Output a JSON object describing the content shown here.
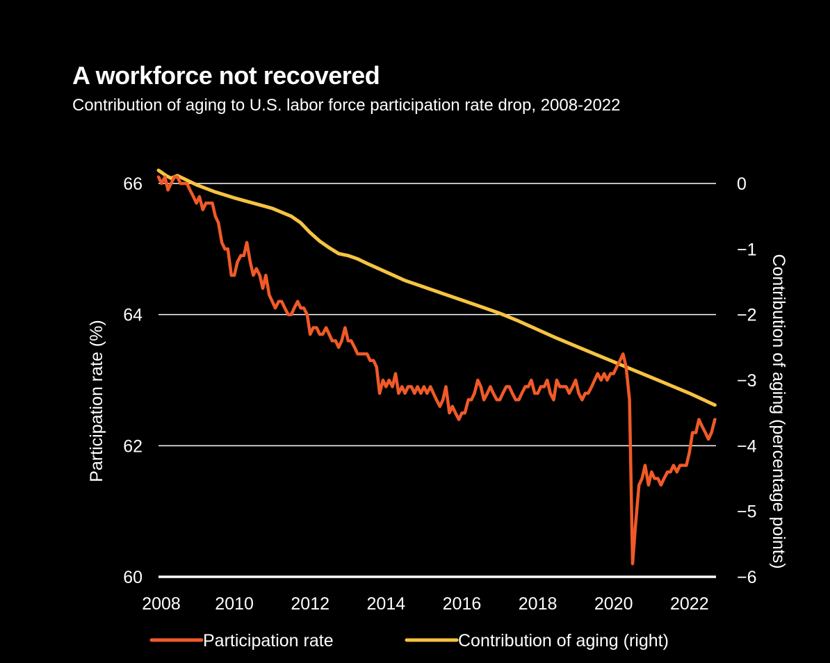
{
  "chart_data": {
    "type": "line",
    "title": "A workforce not recovered",
    "subtitle": "Contribution of aging to U.S. labor force participation rate drop, 2008-2022",
    "xlabel": "",
    "ylabel": "Participation rate (%)",
    "y2label": "Contribution of aging (percentage points)",
    "xlim": [
      2008,
      2022.7
    ],
    "ylim": [
      60,
      66
    ],
    "y2lim": [
      -6,
      0
    ],
    "x_ticks": [
      "2008",
      "2010",
      "2012",
      "2014",
      "2016",
      "2018",
      "2020",
      "2022"
    ],
    "y_ticks": [
      "60",
      "62",
      "64",
      "66"
    ],
    "y2_ticks": [
      "-6",
      "-5",
      "-4",
      "-3",
      "-2",
      "-1",
      "0"
    ],
    "gridlines": [
      62,
      64,
      66
    ],
    "legend_position": "bottom",
    "series": [
      {
        "name": "Participation rate",
        "axis": "left",
        "color": "#f05a28",
        "points": [
          [
            2008.0,
            66.1
          ],
          [
            2008.08,
            66.0
          ],
          [
            2008.17,
            66.1
          ],
          [
            2008.25,
            65.9
          ],
          [
            2008.33,
            66.0
          ],
          [
            2008.42,
            66.1
          ],
          [
            2008.5,
            66.1
          ],
          [
            2008.58,
            66.0
          ],
          [
            2008.67,
            66.0
          ],
          [
            2008.75,
            66.0
          ],
          [
            2008.83,
            65.9
          ],
          [
            2008.92,
            65.8
          ],
          [
            2009.0,
            65.7
          ],
          [
            2009.08,
            65.8
          ],
          [
            2009.17,
            65.6
          ],
          [
            2009.25,
            65.7
          ],
          [
            2009.33,
            65.7
          ],
          [
            2009.42,
            65.7
          ],
          [
            2009.5,
            65.5
          ],
          [
            2009.58,
            65.4
          ],
          [
            2009.67,
            65.1
          ],
          [
            2009.75,
            65.0
          ],
          [
            2009.83,
            65.0
          ],
          [
            2009.92,
            64.6
          ],
          [
            2010.0,
            64.6
          ],
          [
            2010.08,
            64.8
          ],
          [
            2010.17,
            64.9
          ],
          [
            2010.25,
            64.9
          ],
          [
            2010.33,
            65.1
          ],
          [
            2010.42,
            64.8
          ],
          [
            2010.5,
            64.6
          ],
          [
            2010.58,
            64.7
          ],
          [
            2010.67,
            64.6
          ],
          [
            2010.75,
            64.4
          ],
          [
            2010.83,
            64.6
          ],
          [
            2010.92,
            64.3
          ],
          [
            2011.0,
            64.2
          ],
          [
            2011.08,
            64.1
          ],
          [
            2011.17,
            64.2
          ],
          [
            2011.25,
            64.2
          ],
          [
            2011.33,
            64.1
          ],
          [
            2011.42,
            64.0
          ],
          [
            2011.5,
            64.0
          ],
          [
            2011.58,
            64.1
          ],
          [
            2011.67,
            64.2
          ],
          [
            2011.75,
            64.1
          ],
          [
            2011.83,
            64.1
          ],
          [
            2011.92,
            64.0
          ],
          [
            2012.0,
            63.7
          ],
          [
            2012.08,
            63.8
          ],
          [
            2012.17,
            63.8
          ],
          [
            2012.25,
            63.7
          ],
          [
            2012.33,
            63.7
          ],
          [
            2012.42,
            63.8
          ],
          [
            2012.5,
            63.7
          ],
          [
            2012.58,
            63.6
          ],
          [
            2012.67,
            63.6
          ],
          [
            2012.75,
            63.5
          ],
          [
            2012.83,
            63.6
          ],
          [
            2012.92,
            63.8
          ],
          [
            2013.0,
            63.6
          ],
          [
            2013.08,
            63.6
          ],
          [
            2013.17,
            63.5
          ],
          [
            2013.25,
            63.4
          ],
          [
            2013.33,
            63.4
          ],
          [
            2013.42,
            63.4
          ],
          [
            2013.5,
            63.4
          ],
          [
            2013.58,
            63.3
          ],
          [
            2013.67,
            63.3
          ],
          [
            2013.75,
            63.2
          ],
          [
            2013.83,
            62.8
          ],
          [
            2013.92,
            63.0
          ],
          [
            2014.0,
            62.9
          ],
          [
            2014.08,
            63.0
          ],
          [
            2014.17,
            62.9
          ],
          [
            2014.25,
            63.1
          ],
          [
            2014.33,
            62.8
          ],
          [
            2014.42,
            62.9
          ],
          [
            2014.5,
            62.8
          ],
          [
            2014.58,
            62.9
          ],
          [
            2014.67,
            62.9
          ],
          [
            2014.75,
            62.8
          ],
          [
            2014.83,
            62.9
          ],
          [
            2014.92,
            62.8
          ],
          [
            2015.0,
            62.9
          ],
          [
            2015.08,
            62.8
          ],
          [
            2015.17,
            62.9
          ],
          [
            2015.25,
            62.8
          ],
          [
            2015.33,
            62.7
          ],
          [
            2015.42,
            62.6
          ],
          [
            2015.5,
            62.7
          ],
          [
            2015.58,
            62.9
          ],
          [
            2015.67,
            62.5
          ],
          [
            2015.75,
            62.6
          ],
          [
            2015.83,
            62.5
          ],
          [
            2015.92,
            62.4
          ],
          [
            2016.0,
            62.5
          ],
          [
            2016.08,
            62.5
          ],
          [
            2016.17,
            62.7
          ],
          [
            2016.25,
            62.7
          ],
          [
            2016.33,
            62.8
          ],
          [
            2016.42,
            63.0
          ],
          [
            2016.5,
            62.9
          ],
          [
            2016.58,
            62.7
          ],
          [
            2016.67,
            62.8
          ],
          [
            2016.75,
            62.9
          ],
          [
            2016.83,
            62.8
          ],
          [
            2016.92,
            62.7
          ],
          [
            2017.0,
            62.7
          ],
          [
            2017.08,
            62.8
          ],
          [
            2017.17,
            62.9
          ],
          [
            2017.25,
            62.9
          ],
          [
            2017.33,
            62.8
          ],
          [
            2017.42,
            62.7
          ],
          [
            2017.5,
            62.7
          ],
          [
            2017.58,
            62.8
          ],
          [
            2017.67,
            62.9
          ],
          [
            2017.75,
            62.9
          ],
          [
            2017.83,
            63.0
          ],
          [
            2017.92,
            62.8
          ],
          [
            2018.0,
            62.8
          ],
          [
            2018.08,
            62.9
          ],
          [
            2018.17,
            62.9
          ],
          [
            2018.25,
            63.0
          ],
          [
            2018.33,
            62.8
          ],
          [
            2018.42,
            62.7
          ],
          [
            2018.5,
            63.0
          ],
          [
            2018.58,
            62.9
          ],
          [
            2018.67,
            62.9
          ],
          [
            2018.75,
            62.9
          ],
          [
            2018.83,
            62.8
          ],
          [
            2018.92,
            62.9
          ],
          [
            2019.0,
            63.0
          ],
          [
            2019.08,
            62.8
          ],
          [
            2019.17,
            62.7
          ],
          [
            2019.25,
            62.8
          ],
          [
            2019.33,
            62.8
          ],
          [
            2019.42,
            62.9
          ],
          [
            2019.5,
            63.0
          ],
          [
            2019.58,
            63.1
          ],
          [
            2019.67,
            63.0
          ],
          [
            2019.75,
            63.1
          ],
          [
            2019.83,
            63.0
          ],
          [
            2019.92,
            63.1
          ],
          [
            2020.0,
            63.1
          ],
          [
            2020.08,
            63.2
          ],
          [
            2020.17,
            63.3
          ],
          [
            2020.25,
            63.4
          ],
          [
            2020.33,
            63.2
          ],
          [
            2020.42,
            62.7
          ],
          [
            2020.5,
            60.2
          ],
          [
            2020.58,
            60.8
          ],
          [
            2020.67,
            61.4
          ],
          [
            2020.75,
            61.5
          ],
          [
            2020.83,
            61.7
          ],
          [
            2020.92,
            61.4
          ],
          [
            2021.0,
            61.6
          ],
          [
            2021.08,
            61.5
          ],
          [
            2021.17,
            61.5
          ],
          [
            2021.25,
            61.4
          ],
          [
            2021.33,
            61.5
          ],
          [
            2021.42,
            61.6
          ],
          [
            2021.5,
            61.6
          ],
          [
            2021.58,
            61.7
          ],
          [
            2021.67,
            61.6
          ],
          [
            2021.75,
            61.7
          ],
          [
            2021.83,
            61.7
          ],
          [
            2021.92,
            61.7
          ],
          [
            2022.0,
            61.9
          ],
          [
            2022.08,
            62.2
          ],
          [
            2022.17,
            62.2
          ],
          [
            2022.25,
            62.4
          ],
          [
            2022.33,
            62.3
          ],
          [
            2022.42,
            62.2
          ],
          [
            2022.5,
            62.1
          ],
          [
            2022.58,
            62.2
          ],
          [
            2022.67,
            62.4
          ]
        ]
      },
      {
        "name": "Contribution of aging (right)",
        "axis": "right",
        "color": "#f6c342",
        "points": [
          [
            2008.0,
            0.2
          ],
          [
            2008.2,
            0.12
          ],
          [
            2008.33,
            0.08
          ],
          [
            2008.5,
            0.12
          ],
          [
            2009.0,
            -0.02
          ],
          [
            2009.5,
            -0.13
          ],
          [
            2010.0,
            -0.22
          ],
          [
            2010.5,
            -0.3
          ],
          [
            2011.0,
            -0.38
          ],
          [
            2011.5,
            -0.5
          ],
          [
            2011.75,
            -0.6
          ],
          [
            2012.0,
            -0.75
          ],
          [
            2012.25,
            -0.88
          ],
          [
            2012.5,
            -0.98
          ],
          [
            2012.75,
            -1.07
          ],
          [
            2013.0,
            -1.1
          ],
          [
            2013.25,
            -1.15
          ],
          [
            2013.5,
            -1.22
          ],
          [
            2014.0,
            -1.35
          ],
          [
            2014.5,
            -1.48
          ],
          [
            2015.0,
            -1.58
          ],
          [
            2015.5,
            -1.68
          ],
          [
            2016.0,
            -1.78
          ],
          [
            2016.5,
            -1.88
          ],
          [
            2017.0,
            -1.98
          ],
          [
            2017.5,
            -2.1
          ],
          [
            2018.0,
            -2.23
          ],
          [
            2018.5,
            -2.36
          ],
          [
            2019.0,
            -2.48
          ],
          [
            2019.5,
            -2.6
          ],
          [
            2020.0,
            -2.72
          ],
          [
            2020.5,
            -2.84
          ],
          [
            2021.0,
            -2.96
          ],
          [
            2021.5,
            -3.08
          ],
          [
            2022.0,
            -3.2
          ],
          [
            2022.67,
            -3.38
          ]
        ]
      }
    ]
  }
}
